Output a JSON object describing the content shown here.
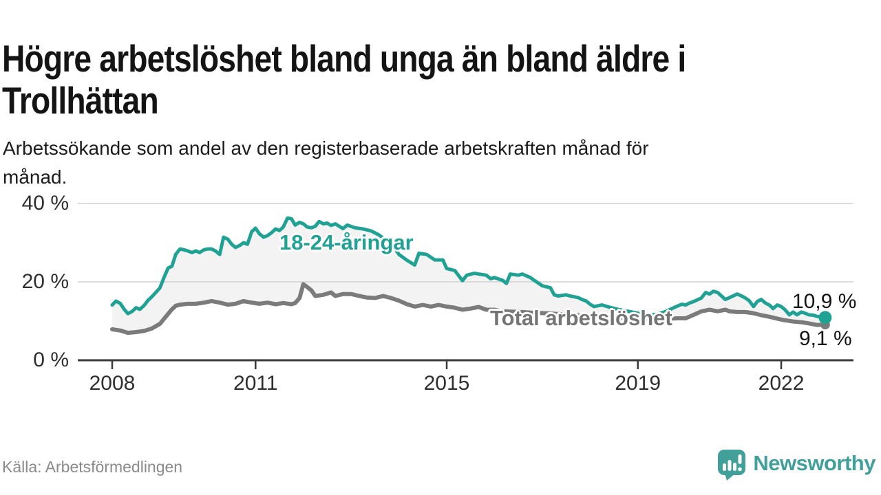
{
  "footer": {
    "source": "Källa: Arbetsförmedlingen",
    "brand": "Newsworthy",
    "brand_color": "#41a09a"
  },
  "chart_data": {
    "type": "line",
    "title": "Högre arbetslöshet bland unga än bland äldre i\nTrollhättan",
    "subtitle": "Arbetssökande som andel av den registerbaserade arbetskraften månad för\nmånad.",
    "unit": "%",
    "ylim": [
      0,
      42
    ],
    "xlim": [
      2007.3,
      2023.5
    ],
    "grid": "horizontal-only",
    "legend": "inline-labels",
    "grid_color": "#d2d2d2",
    "axis_color": "#3a3a3a",
    "band_color": "#f3f3f3",
    "yticks": [
      {
        "value": 0,
        "label": "0 %"
      },
      {
        "value": 20,
        "label": "20 %"
      },
      {
        "value": 40,
        "label": "40 %"
      }
    ],
    "xticks": [
      {
        "value": 2008,
        "label": "2008"
      },
      {
        "value": 2011,
        "label": "2011"
      },
      {
        "value": 2015,
        "label": "2015"
      },
      {
        "value": 2019,
        "label": "2019"
      },
      {
        "value": 2022,
        "label": "2022"
      }
    ],
    "series": [
      {
        "name": "18-24-åringar",
        "color": "#1fa294",
        "end_label": "10,9 %",
        "end_value": 10.9,
        "points": [
          [
            2008.0,
            14.1
          ],
          [
            2008.08,
            15.1
          ],
          [
            2008.17,
            14.5
          ],
          [
            2008.25,
            13.0
          ],
          [
            2008.33,
            11.9
          ],
          [
            2008.42,
            12.5
          ],
          [
            2008.5,
            13.4
          ],
          [
            2008.58,
            13.0
          ],
          [
            2008.67,
            14.0
          ],
          [
            2008.75,
            15.3
          ],
          [
            2008.83,
            16.2
          ],
          [
            2008.92,
            17.4
          ],
          [
            2009.0,
            18.5
          ],
          [
            2009.08,
            21.0
          ],
          [
            2009.17,
            23.5
          ],
          [
            2009.25,
            24.0
          ],
          [
            2009.33,
            27.0
          ],
          [
            2009.42,
            28.4
          ],
          [
            2009.5,
            28.2
          ],
          [
            2009.58,
            27.9
          ],
          [
            2009.67,
            27.5
          ],
          [
            2009.75,
            27.9
          ],
          [
            2009.83,
            27.5
          ],
          [
            2009.92,
            28.2
          ],
          [
            2010.0,
            28.4
          ],
          [
            2010.08,
            28.4
          ],
          [
            2010.17,
            27.8
          ],
          [
            2010.25,
            27.0
          ],
          [
            2010.33,
            31.4
          ],
          [
            2010.42,
            30.9
          ],
          [
            2010.5,
            29.6
          ],
          [
            2010.58,
            28.8
          ],
          [
            2010.67,
            29.3
          ],
          [
            2010.75,
            30.0
          ],
          [
            2010.83,
            29.6
          ],
          [
            2010.92,
            32.8
          ],
          [
            2011.0,
            33.7
          ],
          [
            2011.08,
            32.3
          ],
          [
            2011.17,
            31.4
          ],
          [
            2011.25,
            31.8
          ],
          [
            2011.33,
            32.5
          ],
          [
            2011.42,
            33.5
          ],
          [
            2011.5,
            33.1
          ],
          [
            2011.58,
            34.0
          ],
          [
            2011.67,
            36.3
          ],
          [
            2011.75,
            36.1
          ],
          [
            2011.83,
            34.5
          ],
          [
            2011.92,
            35.2
          ],
          [
            2012.0,
            34.8
          ],
          [
            2012.08,
            34.0
          ],
          [
            2012.17,
            33.8
          ],
          [
            2012.25,
            34.2
          ],
          [
            2012.33,
            35.4
          ],
          [
            2012.42,
            34.8
          ],
          [
            2012.5,
            35.0
          ],
          [
            2012.58,
            34.4
          ],
          [
            2012.67,
            34.8
          ],
          [
            2012.75,
            34.2
          ],
          [
            2012.83,
            33.6
          ],
          [
            2012.92,
            34.5
          ],
          [
            2013.08,
            33.8
          ],
          [
            2013.25,
            33.5
          ],
          [
            2013.42,
            33.0
          ],
          [
            2013.58,
            32.0
          ],
          [
            2013.75,
            30.5
          ],
          [
            2013.92,
            28.5
          ],
          [
            2014.0,
            27.0
          ],
          [
            2014.17,
            25.5
          ],
          [
            2014.33,
            24.3
          ],
          [
            2014.42,
            27.3
          ],
          [
            2014.58,
            27.0
          ],
          [
            2014.75,
            25.6
          ],
          [
            2014.92,
            25.6
          ],
          [
            2015.0,
            23.4
          ],
          [
            2015.17,
            22.9
          ],
          [
            2015.33,
            20.3
          ],
          [
            2015.42,
            21.7
          ],
          [
            2015.58,
            22.2
          ],
          [
            2015.67,
            22.0
          ],
          [
            2015.83,
            21.7
          ],
          [
            2015.92,
            20.8
          ],
          [
            2016.0,
            21.1
          ],
          [
            2016.17,
            20.4
          ],
          [
            2016.25,
            19.6
          ],
          [
            2016.33,
            22.0
          ],
          [
            2016.5,
            21.7
          ],
          [
            2016.58,
            22.0
          ],
          [
            2016.75,
            21.1
          ],
          [
            2016.83,
            20.4
          ],
          [
            2017.0,
            19.0
          ],
          [
            2017.17,
            18.5
          ],
          [
            2017.25,
            16.7
          ],
          [
            2017.33,
            16.4
          ],
          [
            2017.5,
            16.7
          ],
          [
            2017.58,
            16.4
          ],
          [
            2017.75,
            16.0
          ],
          [
            2017.83,
            15.5
          ],
          [
            2017.92,
            15.1
          ],
          [
            2018.0,
            14.3
          ],
          [
            2018.08,
            13.7
          ],
          [
            2018.25,
            14.1
          ],
          [
            2018.42,
            13.5
          ],
          [
            2018.58,
            13.0
          ],
          [
            2018.75,
            12.6
          ],
          [
            2018.92,
            12.2
          ],
          [
            2019.08,
            11.8
          ],
          [
            2019.25,
            11.5
          ],
          [
            2019.42,
            11.8
          ],
          [
            2019.58,
            12.4
          ],
          [
            2019.75,
            13.4
          ],
          [
            2019.92,
            14.3
          ],
          [
            2020.0,
            14.1
          ],
          [
            2020.08,
            14.6
          ],
          [
            2020.17,
            15.0
          ],
          [
            2020.33,
            15.9
          ],
          [
            2020.42,
            17.3
          ],
          [
            2020.5,
            16.9
          ],
          [
            2020.58,
            17.6
          ],
          [
            2020.67,
            17.3
          ],
          [
            2020.75,
            16.4
          ],
          [
            2020.83,
            15.5
          ],
          [
            2020.92,
            16.0
          ],
          [
            2021.08,
            16.9
          ],
          [
            2021.17,
            16.4
          ],
          [
            2021.25,
            15.9
          ],
          [
            2021.33,
            15.2
          ],
          [
            2021.42,
            13.7
          ],
          [
            2021.5,
            15.0
          ],
          [
            2021.58,
            15.5
          ],
          [
            2021.67,
            14.6
          ],
          [
            2021.75,
            14.1
          ],
          [
            2021.83,
            13.2
          ],
          [
            2021.92,
            14.1
          ],
          [
            2022.0,
            13.7
          ],
          [
            2022.08,
            12.9
          ],
          [
            2022.17,
            11.6
          ],
          [
            2022.25,
            12.3
          ],
          [
            2022.33,
            11.6
          ],
          [
            2022.42,
            12.3
          ],
          [
            2022.5,
            12.0
          ],
          [
            2022.58,
            11.6
          ],
          [
            2022.67,
            11.5
          ],
          [
            2022.75,
            11.2
          ],
          [
            2022.92,
            10.9
          ]
        ]
      },
      {
        "name": "Total arbetslöshet",
        "color": "#7b7b7b",
        "end_label": "9,1 %",
        "end_value": 9.1,
        "points": [
          [
            2008.0,
            7.9
          ],
          [
            2008.17,
            7.6
          ],
          [
            2008.33,
            7.0
          ],
          [
            2008.5,
            7.2
          ],
          [
            2008.67,
            7.5
          ],
          [
            2008.83,
            8.1
          ],
          [
            2009.0,
            9.3
          ],
          [
            2009.08,
            10.5
          ],
          [
            2009.17,
            11.8
          ],
          [
            2009.25,
            13.0
          ],
          [
            2009.33,
            13.9
          ],
          [
            2009.42,
            14.2
          ],
          [
            2009.58,
            14.4
          ],
          [
            2009.75,
            14.4
          ],
          [
            2009.92,
            14.7
          ],
          [
            2010.08,
            15.1
          ],
          [
            2010.25,
            14.7
          ],
          [
            2010.42,
            14.2
          ],
          [
            2010.58,
            14.4
          ],
          [
            2010.75,
            15.1
          ],
          [
            2010.92,
            14.7
          ],
          [
            2011.08,
            14.4
          ],
          [
            2011.25,
            14.7
          ],
          [
            2011.42,
            14.3
          ],
          [
            2011.58,
            14.6
          ],
          [
            2011.75,
            14.3
          ],
          [
            2011.83,
            14.6
          ],
          [
            2011.92,
            15.9
          ],
          [
            2012.0,
            19.4
          ],
          [
            2012.08,
            18.7
          ],
          [
            2012.17,
            17.8
          ],
          [
            2012.25,
            16.4
          ],
          [
            2012.42,
            16.7
          ],
          [
            2012.58,
            17.3
          ],
          [
            2012.67,
            16.4
          ],
          [
            2012.83,
            16.9
          ],
          [
            2013.0,
            16.9
          ],
          [
            2013.17,
            16.4
          ],
          [
            2013.33,
            16.0
          ],
          [
            2013.5,
            15.9
          ],
          [
            2013.67,
            16.4
          ],
          [
            2013.83,
            15.9
          ],
          [
            2014.0,
            15.2
          ],
          [
            2014.17,
            14.3
          ],
          [
            2014.33,
            13.7
          ],
          [
            2014.5,
            14.1
          ],
          [
            2014.67,
            13.7
          ],
          [
            2014.83,
            14.1
          ],
          [
            2015.0,
            13.7
          ],
          [
            2015.17,
            13.4
          ],
          [
            2015.33,
            12.9
          ],
          [
            2015.5,
            13.2
          ],
          [
            2015.67,
            13.6
          ],
          [
            2015.83,
            12.9
          ],
          [
            2016.0,
            12.9
          ],
          [
            2016.17,
            12.5
          ],
          [
            2016.33,
            12.4
          ],
          [
            2016.58,
            12.3
          ],
          [
            2016.83,
            12.1
          ],
          [
            2017.08,
            12.0
          ],
          [
            2017.33,
            11.8
          ],
          [
            2017.58,
            11.6
          ],
          [
            2017.83,
            11.4
          ],
          [
            2018.08,
            11.2
          ],
          [
            2018.33,
            11.0
          ],
          [
            2018.58,
            10.8
          ],
          [
            2018.83,
            10.7
          ],
          [
            2019.08,
            10.6
          ],
          [
            2019.33,
            10.5
          ],
          [
            2019.58,
            10.6
          ],
          [
            2019.83,
            10.7
          ],
          [
            2020.0,
            10.7
          ],
          [
            2020.17,
            11.6
          ],
          [
            2020.33,
            12.5
          ],
          [
            2020.5,
            12.9
          ],
          [
            2020.67,
            12.5
          ],
          [
            2020.83,
            12.9
          ],
          [
            2020.92,
            12.5
          ],
          [
            2021.08,
            12.3
          ],
          [
            2021.25,
            12.3
          ],
          [
            2021.42,
            12.0
          ],
          [
            2021.58,
            11.5
          ],
          [
            2021.75,
            11.1
          ],
          [
            2021.92,
            10.6
          ],
          [
            2022.08,
            10.2
          ],
          [
            2022.25,
            9.9
          ],
          [
            2022.42,
            9.7
          ],
          [
            2022.58,
            9.4
          ],
          [
            2022.75,
            9.0
          ],
          [
            2022.92,
            9.1
          ]
        ]
      }
    ]
  }
}
